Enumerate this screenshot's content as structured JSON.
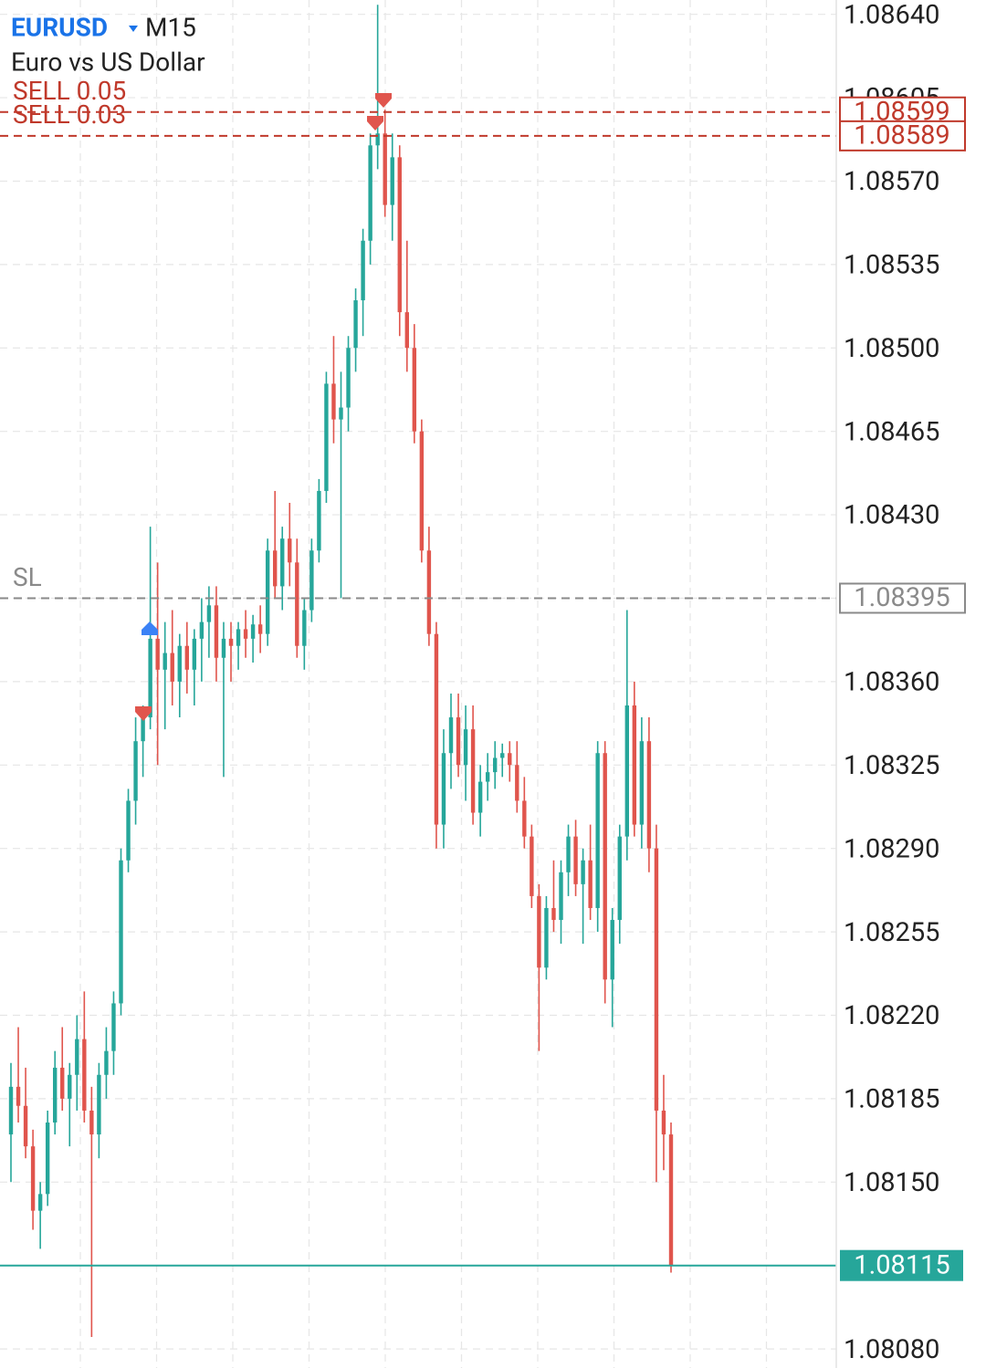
{
  "header": {
    "symbol": "EURUSD",
    "timeframe": "M15",
    "description": "Euro vs US Dollar"
  },
  "chart_data": {
    "type": "candlestick",
    "up_color": "#26a69a",
    "down_color": "#e0554d",
    "ylim": [
      1.08072,
      1.08646
    ],
    "yticks": [
      {
        "value": 1.0864,
        "label": "1.08640"
      },
      1.08605,
      {
        "value": 1.0857,
        "label": "1.08570"
      },
      1.08535,
      {
        "value": 1.085,
        "label": "1.08500"
      },
      1.08465,
      {
        "value": 1.0843,
        "label": "1.08430"
      },
      1.08395,
      {
        "value": 1.0836,
        "label": "1.08360"
      },
      1.08325,
      {
        "value": 1.0829,
        "label": "1.08290"
      },
      1.08255,
      {
        "value": 1.0822,
        "label": "1.08220"
      },
      1.08185,
      {
        "value": 1.0815,
        "label": "1.08150"
      },
      1.08115,
      {
        "value": 1.0808,
        "label": "1.08080"
      }
    ],
    "grid": true,
    "open": [
      1.0817,
      1.0819,
      1.08182,
      1.08165,
      1.08138,
      1.08145,
      1.08175,
      1.08198,
      1.08185,
      1.08195,
      1.0821,
      1.0818,
      1.0817,
      1.08195,
      1.08205,
      1.08225,
      1.08285,
      1.0831,
      1.08335,
      1.08345,
      1.08378,
      1.08365,
      1.08372,
      1.0836,
      1.08375,
      1.08365,
      1.08378,
      1.08385,
      1.08392,
      1.0837,
      1.08378,
      1.08375,
      1.08382,
      1.08378,
      1.08384,
      1.0838,
      1.08415,
      1.084,
      1.0842,
      1.0841,
      1.08375,
      1.0839,
      1.08415,
      1.0844,
      1.08485,
      1.0847,
      1.08475,
      1.085,
      1.0852,
      1.08545,
      1.08585,
      1.0859,
      1.0856,
      1.0858,
      1.08515,
      1.085,
      1.08465,
      1.08415,
      1.0838,
      1.083,
      1.0833,
      1.08345,
      1.08325,
      1.0834,
      1.08305,
      1.08318,
      1.08322,
      1.08328,
      1.0833,
      1.08325,
      1.0831,
      1.08295,
      1.0827,
      1.0824,
      1.08265,
      1.0826,
      1.0828,
      1.08295,
      1.08275,
      1.08285,
      1.08265,
      1.0833,
      1.08235,
      1.0826,
      1.08295,
      1.0835,
      1.083,
      1.08335,
      1.0829,
      1.0818,
      1.0817
    ],
    "high": [
      1.082,
      1.08215,
      1.08198,
      1.08172,
      1.0815,
      1.0818,
      1.08205,
      1.08215,
      1.082,
      1.0822,
      1.0823,
      1.0819,
      1.082,
      1.08215,
      1.0823,
      1.0829,
      1.08315,
      1.08345,
      1.0835,
      1.08425,
      1.0841,
      1.08385,
      1.0839,
      1.0838,
      1.08385,
      1.08382,
      1.08395,
      1.084,
      1.084,
      1.08385,
      1.08385,
      1.08385,
      1.0839,
      1.08388,
      1.08392,
      1.0842,
      1.0844,
      1.08425,
      1.08435,
      1.0842,
      1.08395,
      1.0842,
      1.08445,
      1.0849,
      1.08505,
      1.0849,
      1.08505,
      1.08525,
      1.0855,
      1.0859,
      1.08644,
      1.086,
      1.0859,
      1.08585,
      1.08545,
      1.0851,
      1.0847,
      1.08425,
      1.08385,
      1.0834,
      1.08355,
      1.08355,
      1.0835,
      1.0835,
      1.08325,
      1.0833,
      1.08335,
      1.08334,
      1.08335,
      1.08335,
      1.0832,
      1.083,
      1.08275,
      1.0827,
      1.08285,
      1.08285,
      1.083,
      1.08302,
      1.0829,
      1.083,
      1.08335,
      1.08335,
      1.08265,
      1.083,
      1.0839,
      1.0836,
      1.08345,
      1.08345,
      1.083,
      1.08195,
      1.08175
    ],
    "low": [
      1.0815,
      1.08175,
      1.0816,
      1.0813,
      1.08122,
      1.0814,
      1.0817,
      1.0818,
      1.08165,
      1.0818,
      1.08175,
      1.08085,
      1.0816,
      1.08185,
      1.08195,
      1.0822,
      1.0828,
      1.083,
      1.0832,
      1.0834,
      1.08325,
      1.0834,
      1.0835,
      1.08345,
      1.08355,
      1.0835,
      1.0836,
      1.0837,
      1.0836,
      1.0832,
      1.0836,
      1.08365,
      1.0837,
      1.08368,
      1.08372,
      1.08375,
      1.08395,
      1.0839,
      1.084,
      1.0837,
      1.08365,
      1.08385,
      1.0841,
      1.08435,
      1.0846,
      1.08395,
      1.08465,
      1.0849,
      1.08505,
      1.08535,
      1.08575,
      1.08555,
      1.08545,
      1.08505,
      1.0849,
      1.0846,
      1.0841,
      1.08375,
      1.0829,
      1.0829,
      1.08315,
      1.0832,
      1.0831,
      1.083,
      1.08295,
      1.0831,
      1.08315,
      1.0832,
      1.08318,
      1.08305,
      1.0829,
      1.08265,
      1.08205,
      1.08235,
      1.08255,
      1.0825,
      1.0827,
      1.0827,
      1.0825,
      1.0826,
      1.08255,
      1.08225,
      1.08215,
      1.0825,
      1.08285,
      1.08295,
      1.0829,
      1.0828,
      1.0815,
      1.08155,
      1.08112
    ],
    "close": [
      1.0819,
      1.08182,
      1.08165,
      1.08138,
      1.08145,
      1.08175,
      1.08198,
      1.08185,
      1.08195,
      1.0821,
      1.0818,
      1.0817,
      1.08195,
      1.08205,
      1.08225,
      1.08285,
      1.0831,
      1.08335,
      1.08345,
      1.08378,
      1.08365,
      1.08372,
      1.0836,
      1.08375,
      1.08365,
      1.08378,
      1.08385,
      1.08392,
      1.0837,
      1.08378,
      1.08375,
      1.08382,
      1.08378,
      1.08384,
      1.0838,
      1.08415,
      1.084,
      1.0842,
      1.0841,
      1.08375,
      1.0839,
      1.08415,
      1.0844,
      1.08485,
      1.0847,
      1.08475,
      1.085,
      1.0852,
      1.08545,
      1.08585,
      1.0859,
      1.0856,
      1.0858,
      1.08515,
      1.085,
      1.08465,
      1.08415,
      1.0838,
      1.083,
      1.0833,
      1.08345,
      1.08325,
      1.0834,
      1.08305,
      1.08318,
      1.08322,
      1.08328,
      1.0833,
      1.08325,
      1.0831,
      1.08295,
      1.0827,
      1.0824,
      1.08265,
      1.0826,
      1.0828,
      1.08295,
      1.08275,
      1.08285,
      1.08265,
      1.0833,
      1.08235,
      1.0826,
      1.08295,
      1.0835,
      1.083,
      1.08335,
      1.0829,
      1.0818,
      1.0817,
      1.08115
    ],
    "levels": [
      {
        "name": "SELL 0.05",
        "value": 1.08599,
        "color": "#c0392b"
      },
      {
        "name": "SELL 0.03",
        "value": 1.08589,
        "color": "#c0392b"
      },
      {
        "name": "SL",
        "value": 1.08395,
        "color": "#8a8a8a"
      }
    ],
    "bid": {
      "value": 1.08115,
      "color": "#26a69a"
    }
  }
}
